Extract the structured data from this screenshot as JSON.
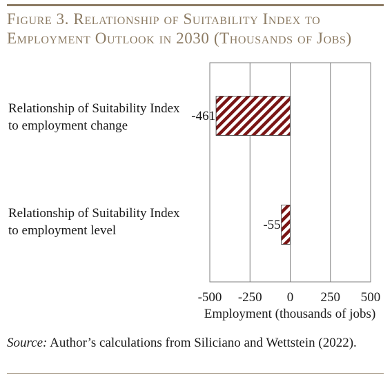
{
  "figure": {
    "title_line1": "Figure 3. Relationship of Suitability Index to",
    "title_line2": "Employment Outlook in 2030 (Thousands of Jobs)",
    "source_label": "Source:",
    "source_text": " Author’s calculations from Siliciano and Wettstein (2022)."
  },
  "colors": {
    "accent": "#8c7b63",
    "bar": "#7a1515",
    "grid": "#7f7f7f"
  },
  "chart_data": {
    "type": "bar",
    "orientation": "horizontal",
    "categories": [
      "Relationship of Suitability Index to employment change",
      "Relationship of Suitability Index to employment level"
    ],
    "category_lines": [
      [
        "Relationship of Suitability Index",
        "to employment change"
      ],
      [
        "Relationship of Suitability Index",
        "to employment level"
      ]
    ],
    "values": [
      -461,
      -55
    ],
    "data_labels": [
      "-461",
      "-55"
    ],
    "xlabel": "Employment (thousands of jobs)",
    "xlim": [
      -500,
      500
    ],
    "xticks": [
      -500,
      -250,
      0,
      250,
      500
    ],
    "xtick_labels": [
      "-500",
      "-250",
      "0",
      "250",
      "500"
    ],
    "grid": true,
    "bar_pattern": "diagonal-hatch"
  }
}
